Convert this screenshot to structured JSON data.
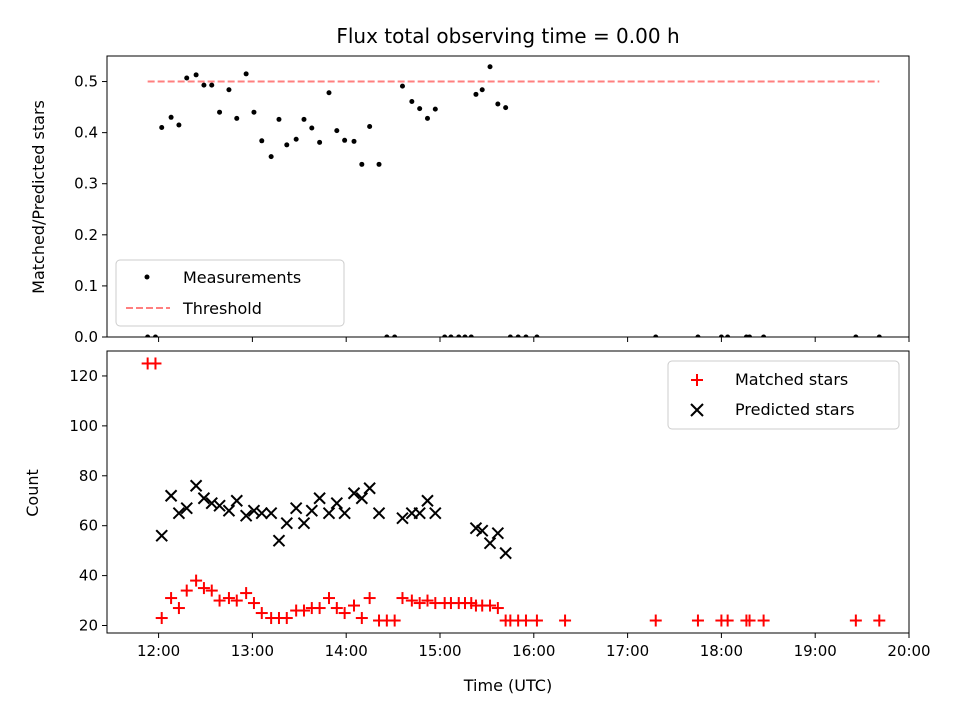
{
  "chart_data": [
    {
      "type": "scatter",
      "title": "Flux total observing time = 0.00 h",
      "xlabel": "",
      "ylabel": "Matched/Predicted stars",
      "xlim": [
        "11:27",
        "20:00"
      ],
      "ylim": [
        0,
        0.55
      ],
      "yticks": [
        "0.0",
        "0.1",
        "0.2",
        "0.3",
        "0.4",
        "0.5"
      ],
      "legend_position": "lower-left",
      "series": [
        {
          "name": "Measurements",
          "color": "#000000",
          "marker": "dot",
          "points": [
            [
              "11:53",
              0.0
            ],
            [
              "11:58",
              0.0
            ],
            [
              "12:02",
              0.41
            ],
            [
              "12:08",
              0.43
            ],
            [
              "12:13",
              0.415
            ],
            [
              "12:18",
              0.507
            ],
            [
              "12:24",
              0.513
            ],
            [
              "12:29",
              0.493
            ],
            [
              "12:34",
              0.493
            ],
            [
              "12:39",
              0.44
            ],
            [
              "12:45",
              0.484
            ],
            [
              "12:50",
              0.428
            ],
            [
              "12:56",
              0.515
            ],
            [
              "13:01",
              0.44
            ],
            [
              "13:06",
              0.384
            ],
            [
              "13:12",
              0.353
            ],
            [
              "13:17",
              0.426
            ],
            [
              "13:22",
              0.376
            ],
            [
              "13:28",
              0.387
            ],
            [
              "13:33",
              0.426
            ],
            [
              "13:38",
              0.409
            ],
            [
              "13:43",
              0.381
            ],
            [
              "13:49",
              0.478
            ],
            [
              "13:54",
              0.404
            ],
            [
              "13:59",
              0.385
            ],
            [
              "14:05",
              0.383
            ],
            [
              "14:10",
              0.338
            ],
            [
              "14:15",
              0.412
            ],
            [
              "14:21",
              0.338
            ],
            [
              "14:26",
              0.0
            ],
            [
              "14:31",
              0.0
            ],
            [
              "14:36",
              0.491
            ],
            [
              "14:42",
              0.461
            ],
            [
              "14:47",
              0.447
            ],
            [
              "14:52",
              0.428
            ],
            [
              "14:57",
              0.446
            ],
            [
              "15:03",
              0.0
            ],
            [
              "15:07",
              0.0
            ],
            [
              "15:12",
              0.0
            ],
            [
              "15:16",
              0.0
            ],
            [
              "15:20",
              0.0
            ],
            [
              "15:23",
              0.475
            ],
            [
              "15:27",
              0.484
            ],
            [
              "15:32",
              0.529
            ],
            [
              "15:37",
              0.456
            ],
            [
              "15:42",
              0.449
            ],
            [
              "15:45",
              0.0
            ],
            [
              "15:50",
              0.0
            ],
            [
              "15:55",
              0.0
            ],
            [
              "16:02",
              0.0
            ],
            [
              "17:18",
              0.0
            ],
            [
              "17:45",
              0.0
            ],
            [
              "18:00",
              0.0
            ],
            [
              "18:04",
              0.0
            ],
            [
              "18:16",
              0.0
            ],
            [
              "18:18",
              0.0
            ],
            [
              "18:27",
              0.0
            ],
            [
              "19:26",
              0.0
            ],
            [
              "19:41",
              0.0
            ]
          ]
        },
        {
          "name": "Threshold",
          "color": "#ff7f7f",
          "style": "dashed",
          "points": [
            [
              "11:53",
              0.5
            ],
            [
              "19:41",
              0.5
            ]
          ]
        }
      ]
    },
    {
      "type": "scatter",
      "title": "",
      "xlabel": "Time (UTC)",
      "ylabel": "Count",
      "xlim": [
        "11:27",
        "20:00"
      ],
      "ylim": [
        17,
        130
      ],
      "yticks": [
        "20",
        "40",
        "60",
        "80",
        "100",
        "120"
      ],
      "xticks": [
        "12:00",
        "13:00",
        "14:00",
        "15:00",
        "16:00",
        "17:00",
        "18:00",
        "19:00",
        "20:00"
      ],
      "legend_position": "upper-right",
      "series": [
        {
          "name": "Matched stars",
          "color": "#ff0000",
          "marker": "plus",
          "points": [
            [
              "11:53",
              125
            ],
            [
              "11:58",
              125
            ],
            [
              "12:02",
              23
            ],
            [
              "12:08",
              31
            ],
            [
              "12:13",
              27
            ],
            [
              "12:18",
              34
            ],
            [
              "12:24",
              38
            ],
            [
              "12:29",
              35
            ],
            [
              "12:34",
              34
            ],
            [
              "12:39",
              30
            ],
            [
              "12:45",
              31
            ],
            [
              "12:50",
              30
            ],
            [
              "12:56",
              33
            ],
            [
              "13:01",
              29
            ],
            [
              "13:06",
              25
            ],
            [
              "13:12",
              23
            ],
            [
              "13:17",
              23
            ],
            [
              "13:22",
              23
            ],
            [
              "13:28",
              26
            ],
            [
              "13:33",
              26
            ],
            [
              "13:38",
              27
            ],
            [
              "13:43",
              27
            ],
            [
              "13:49",
              31
            ],
            [
              "13:54",
              27
            ],
            [
              "13:59",
              25
            ],
            [
              "14:05",
              28
            ],
            [
              "14:10",
              23
            ],
            [
              "14:15",
              31
            ],
            [
              "14:21",
              22
            ],
            [
              "14:26",
              22
            ],
            [
              "14:31",
              22
            ],
            [
              "14:36",
              31
            ],
            [
              "14:42",
              30
            ],
            [
              "14:47",
              29
            ],
            [
              "14:52",
              30
            ],
            [
              "14:57",
              29
            ],
            [
              "15:03",
              29
            ],
            [
              "15:07",
              29
            ],
            [
              "15:12",
              29
            ],
            [
              "15:16",
              29
            ],
            [
              "15:20",
              29
            ],
            [
              "15:23",
              28
            ],
            [
              "15:27",
              28
            ],
            [
              "15:32",
              28
            ],
            [
              "15:37",
              27
            ],
            [
              "15:42",
              22
            ],
            [
              "15:45",
              22
            ],
            [
              "15:50",
              22
            ],
            [
              "15:55",
              22
            ],
            [
              "16:02",
              22
            ],
            [
              "16:20",
              22
            ],
            [
              "17:18",
              22
            ],
            [
              "17:45",
              22
            ],
            [
              "18:00",
              22
            ],
            [
              "18:04",
              22
            ],
            [
              "18:16",
              22
            ],
            [
              "18:18",
              22
            ],
            [
              "18:27",
              22
            ],
            [
              "19:26",
              22
            ],
            [
              "19:41",
              22
            ]
          ]
        },
        {
          "name": "Predicted stars",
          "color": "#000000",
          "marker": "x",
          "points": [
            [
              "12:02",
              56
            ],
            [
              "12:08",
              72
            ],
            [
              "12:13",
              65
            ],
            [
              "12:18",
              67
            ],
            [
              "12:24",
              76
            ],
            [
              "12:29",
              71
            ],
            [
              "12:34",
              69
            ],
            [
              "12:39",
              68
            ],
            [
              "12:45",
              66
            ],
            [
              "12:50",
              70
            ],
            [
              "12:56",
              64
            ],
            [
              "13:01",
              66
            ],
            [
              "13:06",
              65
            ],
            [
              "13:12",
              65
            ],
            [
              "13:17",
              54
            ],
            [
              "13:22",
              61
            ],
            [
              "13:28",
              67
            ],
            [
              "13:33",
              61
            ],
            [
              "13:38",
              66
            ],
            [
              "13:43",
              71
            ],
            [
              "13:49",
              65
            ],
            [
              "13:54",
              69
            ],
            [
              "13:59",
              65
            ],
            [
              "14:05",
              73
            ],
            [
              "14:10",
              71
            ],
            [
              "14:15",
              75
            ],
            [
              "14:21",
              65
            ],
            [
              "14:36",
              63
            ],
            [
              "14:42",
              65
            ],
            [
              "14:47",
              65
            ],
            [
              "14:52",
              70
            ],
            [
              "14:57",
              65
            ],
            [
              "15:23",
              59
            ],
            [
              "15:27",
              58
            ],
            [
              "15:32",
              53
            ],
            [
              "15:37",
              57
            ],
            [
              "15:42",
              49
            ]
          ]
        }
      ]
    }
  ]
}
